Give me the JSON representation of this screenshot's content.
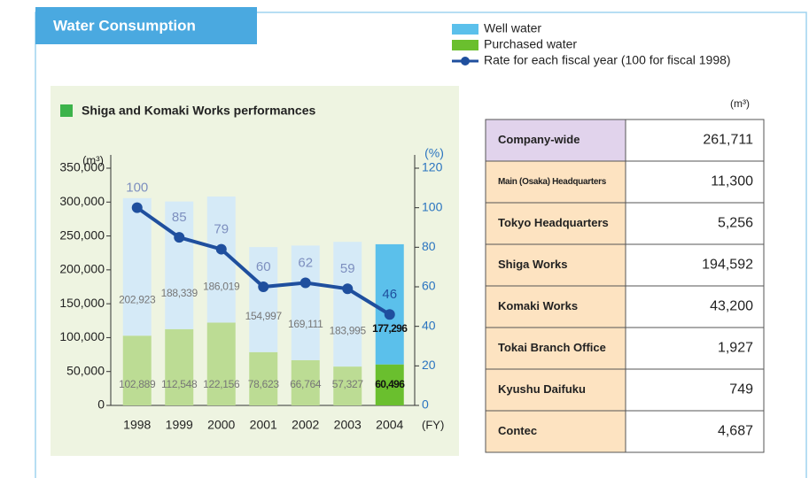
{
  "header": {
    "title": "Water Consumption"
  },
  "chart_data": {
    "type": "bar",
    "stacked": true,
    "title": "Shiga and Komaki Works performances",
    "y_label": "(m³)",
    "y2_label": "(%)",
    "x_label": "(FY)",
    "categories": [
      "1998",
      "1999",
      "2000",
      "2001",
      "2002",
      "2003",
      "2004"
    ],
    "series": [
      {
        "name": "Well water",
        "color": "#5bc0eb",
        "colors": [
          "#d5eaf7",
          "#d5eaf7",
          "#d5eaf7",
          "#d5eaf7",
          "#d5eaf7",
          "#d5eaf7",
          "#5bc0eb"
        ],
        "values": [
          202923,
          188339,
          186019,
          154997,
          169111,
          183995,
          177296
        ],
        "value_labels": [
          "202,923",
          "188,339",
          "186,019",
          "154,997",
          "169,111",
          "183,995",
          "177,296"
        ]
      },
      {
        "name": "Purchased water",
        "color": "#6abf2e",
        "colors": [
          "#bcdc94",
          "#bcdc94",
          "#bcdc94",
          "#bcdc94",
          "#bcdc94",
          "#bcdc94",
          "#6abf2e"
        ],
        "values": [
          102889,
          112548,
          122156,
          78623,
          66764,
          57327,
          60496
        ],
        "value_labels": [
          "102,889",
          "112,548",
          "122,156",
          "78,623",
          "66,764",
          "57,327",
          "60,496"
        ]
      },
      {
        "name": "Rate for each fiscal year (100 for fiscal 1998)",
        "type": "line",
        "axis": "y2",
        "color": "#1f4f9e",
        "values": [
          100,
          85,
          79,
          60,
          62,
          59,
          46
        ]
      }
    ],
    "ylim": [
      0,
      350000
    ],
    "yticks": [
      0,
      {
        "value": 50000,
        "label": "50,000"
      },
      {
        "value": 100000,
        "label": "100,000"
      },
      {
        "value": 150000,
        "label": "150,000"
      },
      {
        "value": 200000,
        "label": "200,000"
      },
      {
        "value": 250000,
        "label": "250,000"
      },
      {
        "value": 300000,
        "label": "300,000"
      },
      {
        "value": 350000,
        "label": "350,000"
      }
    ],
    "y2lim": [
      0,
      120
    ],
    "y2ticks": [
      0,
      20,
      40,
      60,
      80,
      100,
      120
    ]
  },
  "table": {
    "unit": "(m³)",
    "rows": [
      [
        "Company-wide",
        "261,711"
      ],
      [
        "Main (Osaka) Headquarters",
        "11,300"
      ],
      [
        "Tokyo Headquarters",
        "5,256"
      ],
      [
        "Shiga Works",
        "194,592"
      ],
      [
        "Komaki Works",
        "43,200"
      ],
      [
        "Tokai Branch Office",
        "1,927"
      ],
      [
        "Kyushu Daifuku",
        "749"
      ],
      [
        "Contec",
        "4,687"
      ]
    ]
  }
}
